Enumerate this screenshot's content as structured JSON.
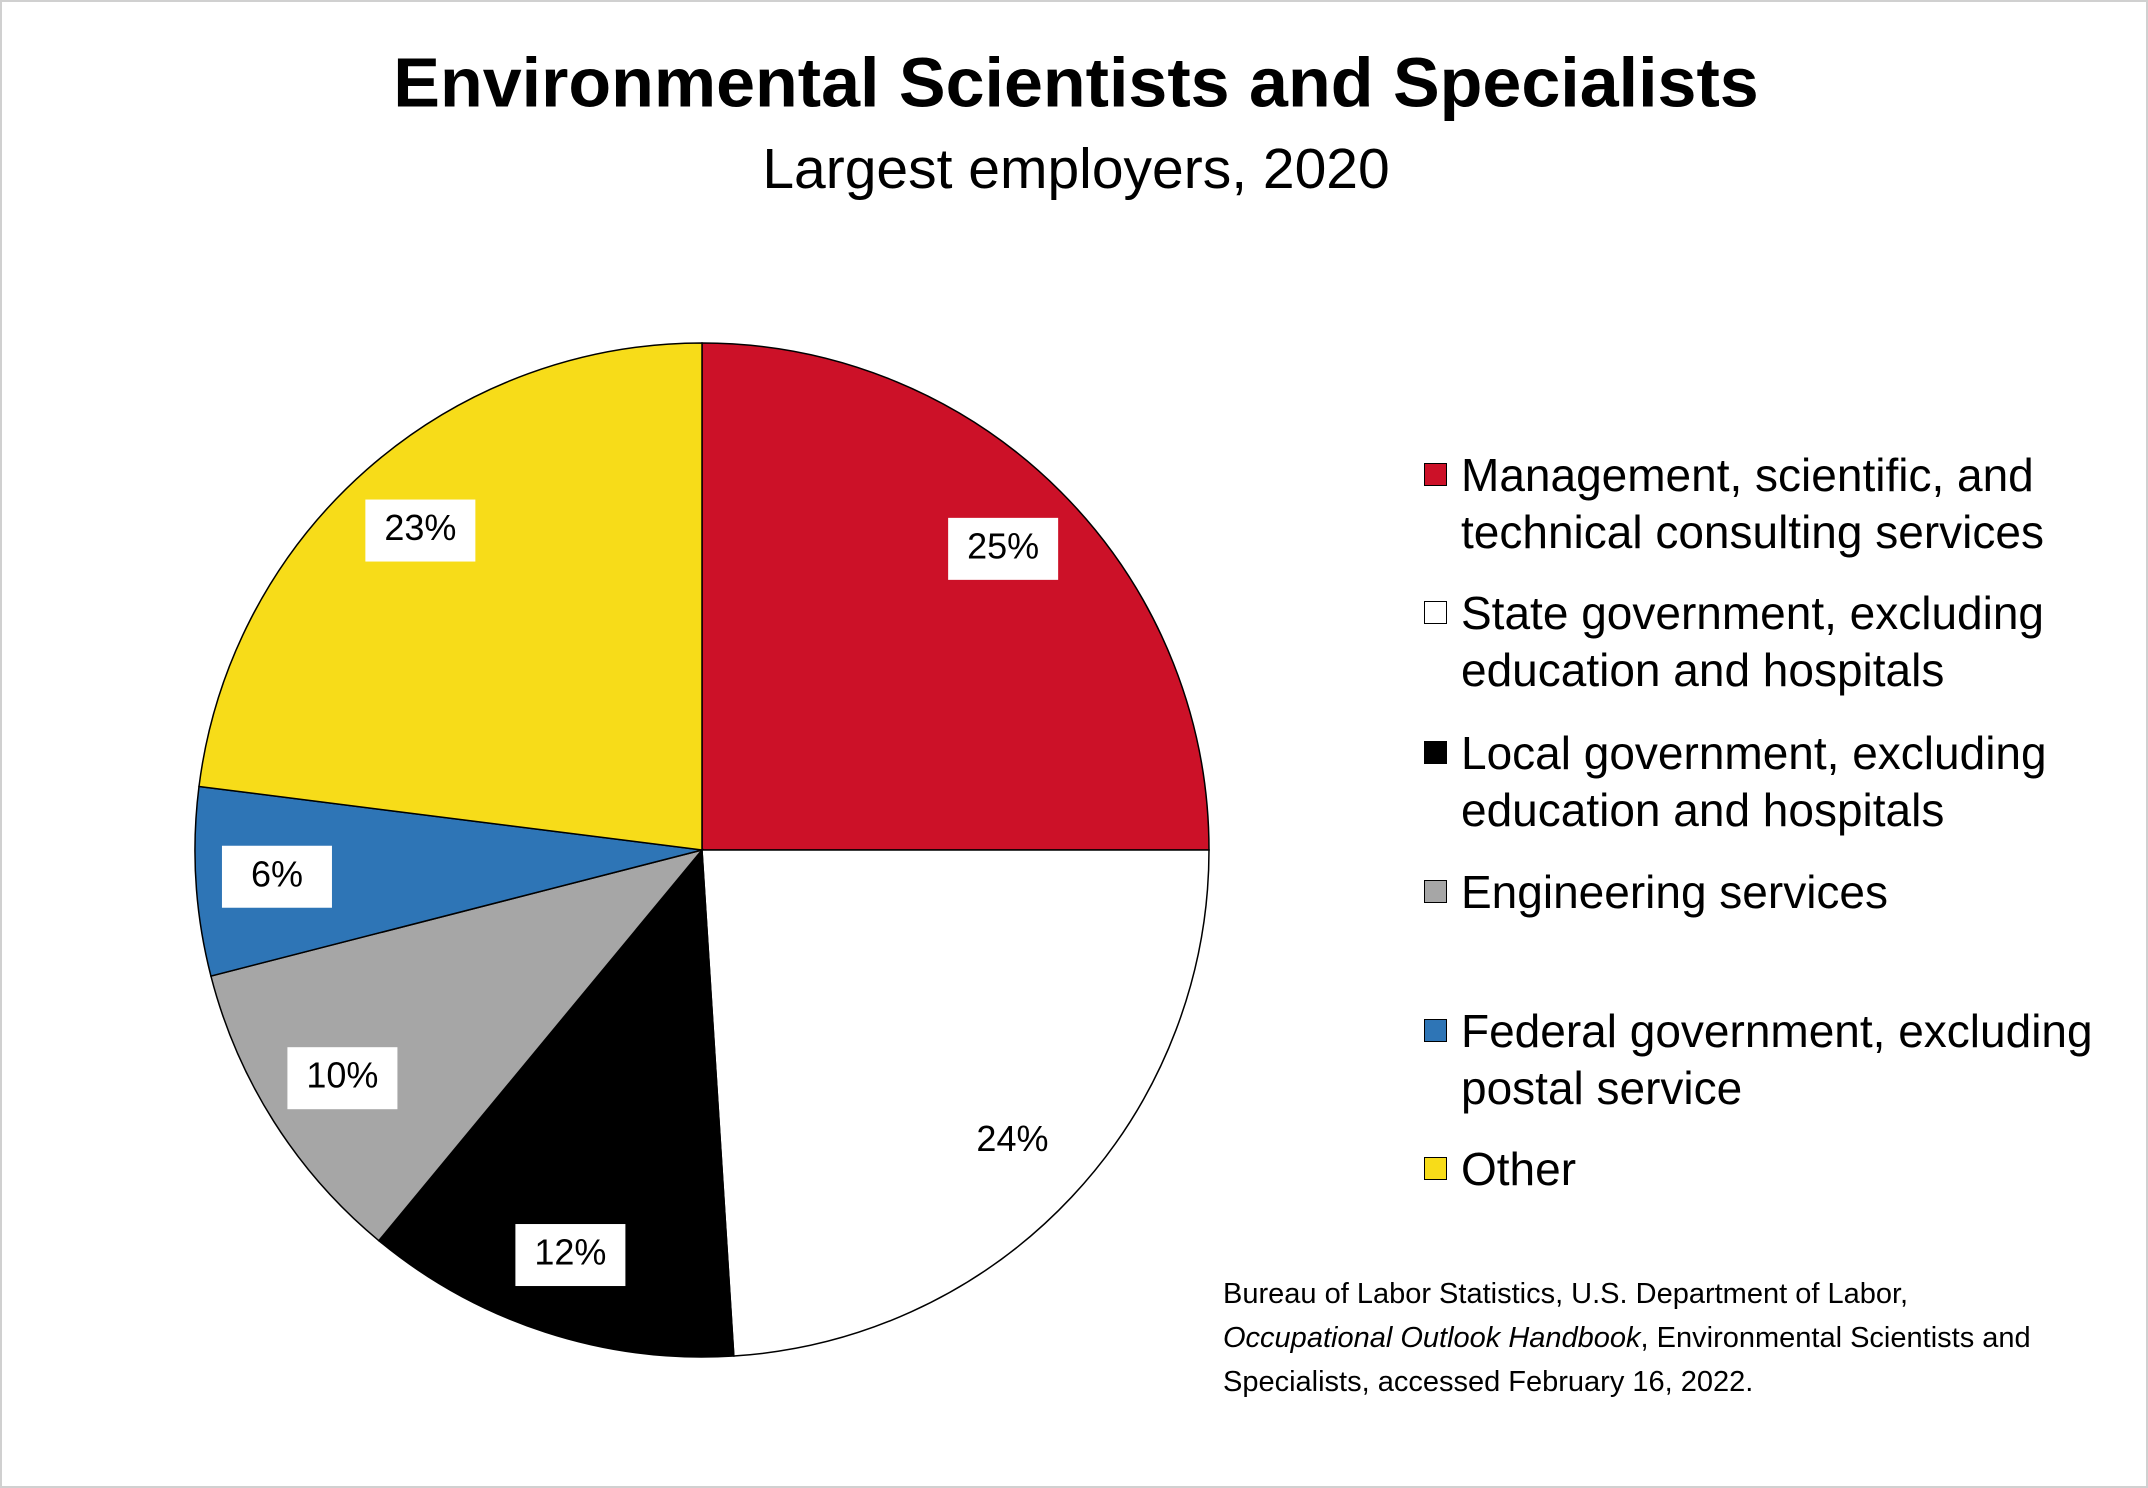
{
  "chart_data": {
    "type": "pie",
    "title": "Environmental Scientists and Specialists",
    "subtitle": "Largest employers, 2020",
    "categories": [
      "Management, scientific, and technical consulting services",
      "State government, excluding education and hospitals",
      "Local government, excluding education and hospitals",
      "Engineering services",
      "Federal government, excluding postal service",
      "Other"
    ],
    "values": [
      25,
      24,
      12,
      10,
      6,
      23
    ],
    "value_labels": [
      "25%",
      "24%",
      "12%",
      "10%",
      "6%",
      "23%"
    ],
    "colors": [
      "#cc1128",
      "#ffffff",
      "#000000",
      "#a6a6a6",
      "#2e75b6",
      "#f7dc19"
    ],
    "source": [
      "Bureau of Labor Statistics, U.S. Department of Labor,",
      "Occupational Outlook Handbook",
      ", Environmental Scientists and Specialists, accessed February 16, 2022."
    ]
  }
}
